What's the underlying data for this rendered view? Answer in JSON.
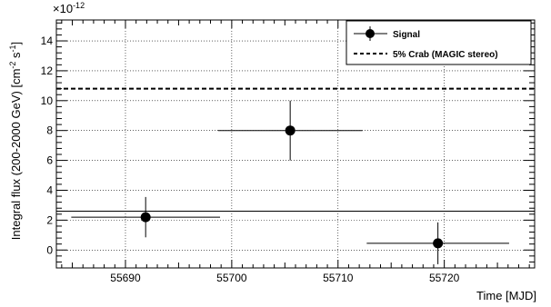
{
  "chart_data": {
    "type": "scatter",
    "xlabel": "Time [MJD]",
    "ylabel_main": "Integral flux (200-2000 GeV) [cm",
    "ylabel_exp1": "-2",
    "ylabel_mid": " s",
    "ylabel_exp2": "-1",
    "ylabel_end": "]",
    "y_multiplier_base": "×10",
    "y_multiplier_exp": "-12",
    "xlim": [
      55683.5,
      55728.5
    ],
    "ylim": [
      -1.2,
      15.4
    ],
    "x_ticks": [
      55690,
      55700,
      55710,
      55720
    ],
    "x_tick_labels": [
      "55690",
      "55700",
      "55710",
      "55720"
    ],
    "y_ticks": [
      0,
      2,
      4,
      6,
      8,
      10,
      12,
      14
    ],
    "y_tick_labels": [
      "0",
      "2",
      "4",
      "6",
      "8",
      "10",
      "12",
      "14"
    ],
    "grid": true,
    "legend_position": "top-right",
    "series": [
      {
        "name": "Signal",
        "points": [
          {
            "x": 55691.9,
            "xerr": 7.0,
            "y": 2.2,
            "yerr": 1.35
          },
          {
            "x": 55705.5,
            "xerr": 6.8,
            "y": 8.0,
            "yerr": 2.0
          },
          {
            "x": 55719.4,
            "xerr": 6.7,
            "y": 0.45,
            "yerr": 1.4
          }
        ]
      }
    ],
    "reference_lines": [
      {
        "name": "5% Crab (MAGIC stereo)",
        "y": 10.8,
        "style": "dashed"
      },
      {
        "name": "",
        "y": 2.6,
        "style": "solid"
      }
    ]
  }
}
